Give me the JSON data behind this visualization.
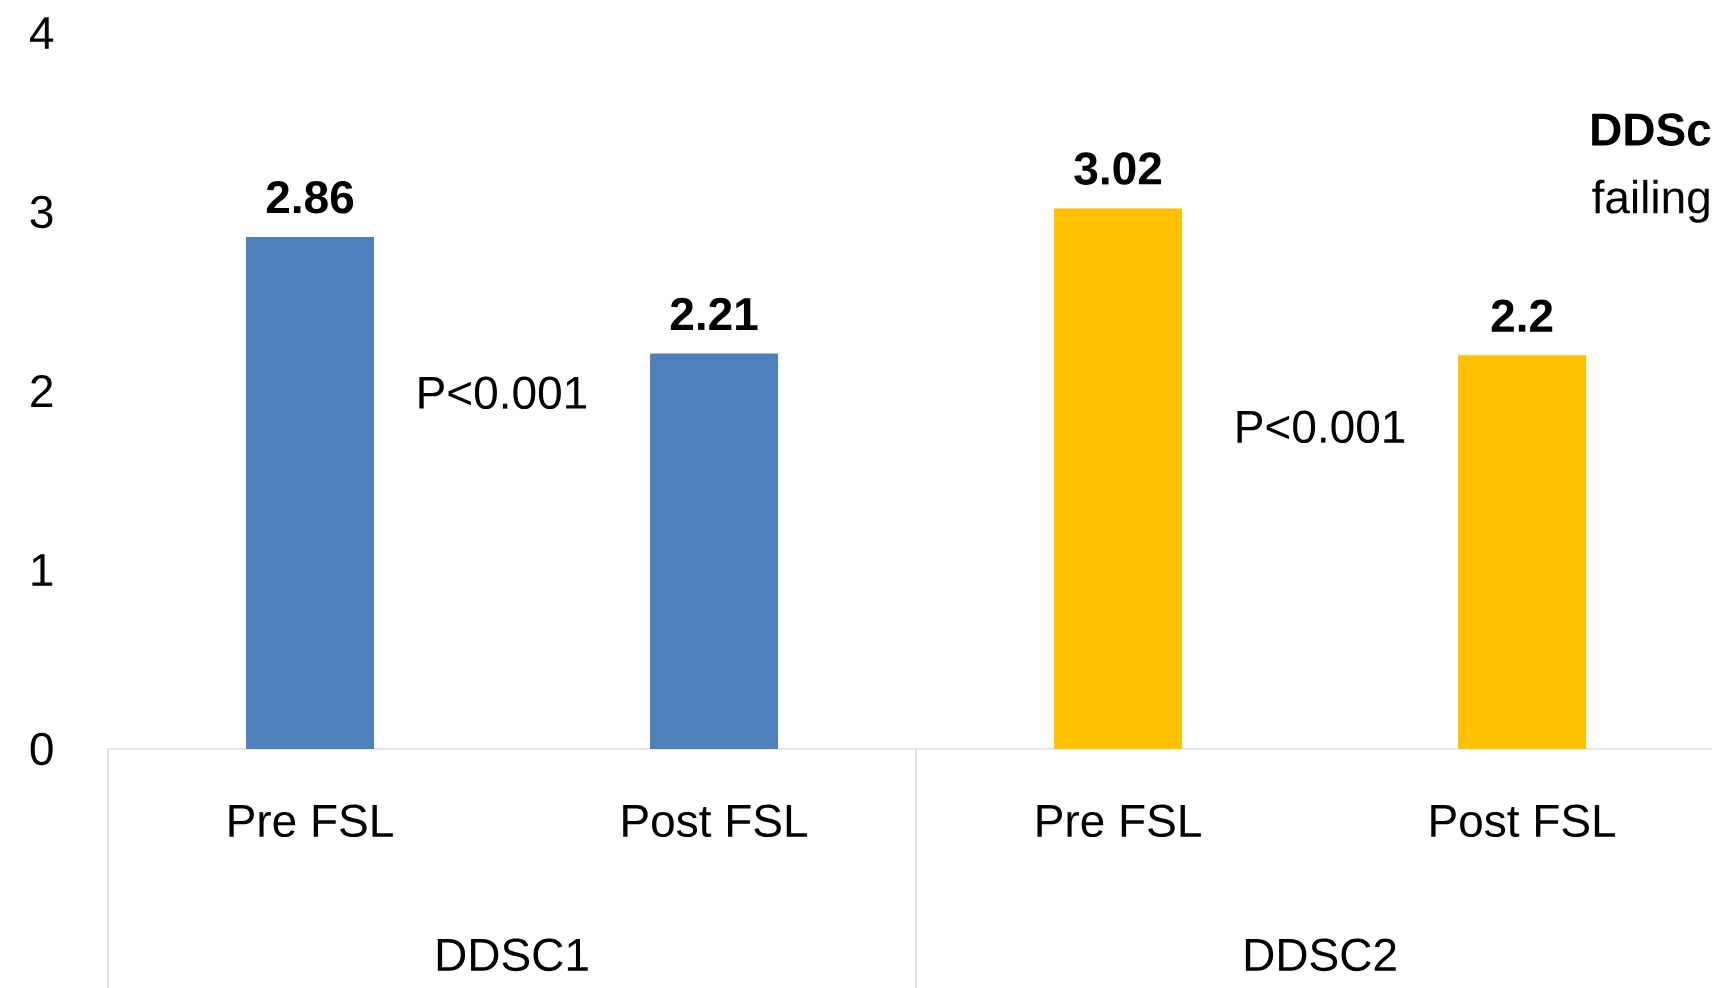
{
  "chart_data": {
    "type": "bar",
    "categories": [
      "Pre FSL",
      "Post FSL",
      "Pre FSL",
      "Post FSL"
    ],
    "values": [
      2.86,
      2.21,
      3.02,
      2.2
    ],
    "colors": [
      "#4f81bd",
      "#4f81bd",
      "#ffc000",
      "#ffc000"
    ],
    "data_labels": true,
    "ylim": [
      0,
      4
    ],
    "yticks": [
      0,
      1,
      2,
      3,
      4
    ],
    "annotations": [
      "P<0.001",
      "P<0.001",
      "DDSC1",
      "DDSC2",
      "DDSc",
      "failing"
    ]
  }
}
